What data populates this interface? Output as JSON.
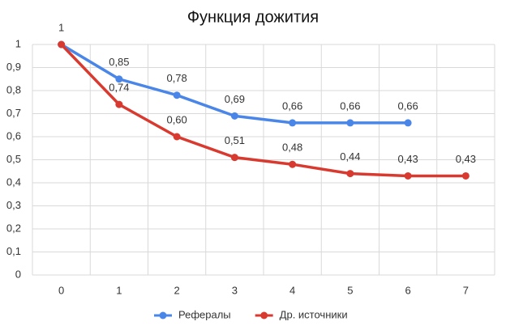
{
  "chart_data": {
    "type": "line",
    "title": "Функция дожития",
    "categories": [
      "0",
      "1",
      "2",
      "3",
      "4",
      "5",
      "6",
      "7"
    ],
    "series": [
      {
        "name": "Рефералы",
        "color": "#4a86e8",
        "values": [
          1,
          0.85,
          0.78,
          0.69,
          0.66,
          0.66,
          0.66,
          null
        ],
        "value_labels": [
          "1",
          "0,85",
          "0,78",
          "0,69",
          "0,66",
          "0,66",
          "0,66",
          null
        ]
      },
      {
        "name": "Др. источники",
        "color": "#d93a30",
        "values": [
          1,
          0.74,
          0.6,
          0.51,
          0.48,
          0.44,
          0.43,
          0.43
        ],
        "value_labels": [
          null,
          "0,74",
          "0,60",
          "0,51",
          "0,48",
          "0,44",
          "0,43",
          "0,43"
        ]
      }
    ],
    "ylim": [
      0,
      1
    ],
    "yticks": [
      0,
      {
        "value": 0.1,
        "label": "0,1"
      },
      {
        "value": 0.2,
        "label": "0,2"
      },
      {
        "value": 0.3,
        "label": "0,3"
      },
      {
        "value": 0.4,
        "label": "0,4"
      },
      {
        "value": 0.5,
        "label": "0,5"
      },
      {
        "value": 0.6,
        "label": "0,6"
      },
      {
        "value": 0.7,
        "label": "0,7"
      },
      {
        "value": 0.8,
        "label": "0,8"
      },
      {
        "value": 0.9,
        "label": "0,9"
      },
      1
    ],
    "grid": true,
    "legend": "bottom"
  }
}
